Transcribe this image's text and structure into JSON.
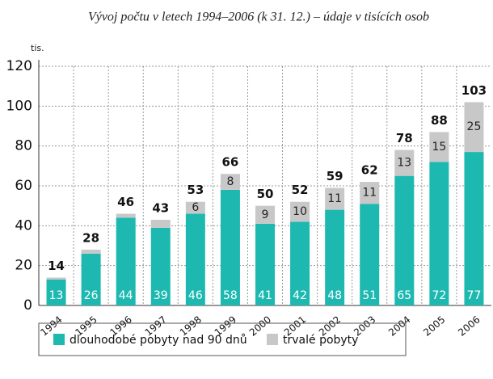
{
  "chart_data": {
    "type": "stacked_bar",
    "title": "Vývoj počtu v letech 1994–2006 (k 31. 12.) – údaje v tisících osob",
    "y_label": "tis.",
    "categories": [
      "1994",
      "1995",
      "1996",
      "1997",
      "1998",
      "1999",
      "2000",
      "2001",
      "2002",
      "2003",
      "2004",
      "2005",
      "2006"
    ],
    "series": [
      {
        "name": "dlouhodobé pobyty nad 90 dnů",
        "color": "#1db9b1",
        "values": [
          13,
          26,
          44,
          39,
          46,
          58,
          41,
          42,
          48,
          51,
          65,
          72,
          77
        ]
      },
      {
        "name": "trvalé pobyty",
        "color": "#c8c8c9",
        "values": [
          1,
          2,
          2,
          4,
          6,
          8,
          9,
          10,
          11,
          11,
          13,
          15,
          25
        ],
        "value_labels": [
          null,
          null,
          null,
          null,
          "6",
          "8",
          "9",
          "10",
          "11",
          "11",
          "13",
          "15",
          "25"
        ]
      }
    ],
    "totals": [
      14,
      28,
      46,
      43,
      53,
      66,
      50,
      52,
      59,
      62,
      78,
      88,
      103
    ],
    "ylim": [
      0,
      120
    ],
    "yticks": [
      0,
      20,
      40,
      60,
      80,
      100,
      120
    ],
    "grid": true,
    "legend": "bottom"
  }
}
